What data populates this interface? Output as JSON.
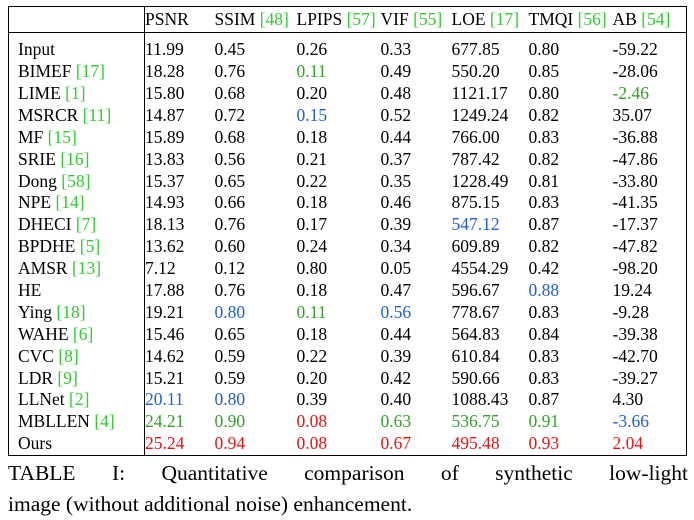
{
  "table": {
    "headers": [
      {
        "label": "",
        "cite": ""
      },
      {
        "label": "PSNR",
        "cite": ""
      },
      {
        "label": "SSIM ",
        "cite": "[48]"
      },
      {
        "label": "LPIPS ",
        "cite": "[57]"
      },
      {
        "label": "VIF ",
        "cite": "[55]"
      },
      {
        "label": "LOE ",
        "cite": "[17]"
      },
      {
        "label": "TMQI ",
        "cite": "[56]"
      },
      {
        "label": "AB ",
        "cite": "[54]"
      }
    ],
    "rows": [
      {
        "method": "Input",
        "cite": "",
        "cells": [
          {
            "v": "11.99",
            "r": ""
          },
          {
            "v": "0.45",
            "r": ""
          },
          {
            "v": "0.26",
            "r": ""
          },
          {
            "v": "0.33",
            "r": ""
          },
          {
            "v": "677.85",
            "r": ""
          },
          {
            "v": "0.80",
            "r": ""
          },
          {
            "v": "-59.22",
            "r": ""
          }
        ]
      },
      {
        "method": "BIMEF ",
        "cite": "[17]",
        "cells": [
          {
            "v": "18.28",
            "r": ""
          },
          {
            "v": "0.76",
            "r": ""
          },
          {
            "v": "0.11",
            "r": "second"
          },
          {
            "v": "0.49",
            "r": ""
          },
          {
            "v": "550.20",
            "r": ""
          },
          {
            "v": "0.85",
            "r": ""
          },
          {
            "v": "-28.06",
            "r": ""
          }
        ]
      },
      {
        "method": "LIME ",
        "cite": "[1]",
        "cells": [
          {
            "v": "15.80",
            "r": ""
          },
          {
            "v": "0.68",
            "r": ""
          },
          {
            "v": "0.20",
            "r": ""
          },
          {
            "v": "0.48",
            "r": ""
          },
          {
            "v": "1121.17",
            "r": ""
          },
          {
            "v": "0.80",
            "r": ""
          },
          {
            "v": "-2.46",
            "r": "second"
          }
        ]
      },
      {
        "method": "MSRCR ",
        "cite": "[11]",
        "cells": [
          {
            "v": "14.87",
            "r": ""
          },
          {
            "v": "0.72",
            "r": ""
          },
          {
            "v": "0.15",
            "r": "third"
          },
          {
            "v": "0.52",
            "r": ""
          },
          {
            "v": "1249.24",
            "r": ""
          },
          {
            "v": "0.82",
            "r": ""
          },
          {
            "v": "35.07",
            "r": ""
          }
        ]
      },
      {
        "method": "MF ",
        "cite": "[15]",
        "cells": [
          {
            "v": "15.89",
            "r": ""
          },
          {
            "v": "0.68",
            "r": ""
          },
          {
            "v": "0.18",
            "r": ""
          },
          {
            "v": "0.44",
            "r": ""
          },
          {
            "v": "766.00",
            "r": ""
          },
          {
            "v": "0.83",
            "r": ""
          },
          {
            "v": "-36.88",
            "r": ""
          }
        ]
      },
      {
        "method": "SRIE ",
        "cite": "[16]",
        "cells": [
          {
            "v": "13.83",
            "r": ""
          },
          {
            "v": "0.56",
            "r": ""
          },
          {
            "v": "0.21",
            "r": ""
          },
          {
            "v": "0.37",
            "r": ""
          },
          {
            "v": "787.42",
            "r": ""
          },
          {
            "v": "0.82",
            "r": ""
          },
          {
            "v": "-47.86",
            "r": ""
          }
        ]
      },
      {
        "method": "Dong ",
        "cite": "[58]",
        "cells": [
          {
            "v": "15.37",
            "r": ""
          },
          {
            "v": "0.65",
            "r": ""
          },
          {
            "v": "0.22",
            "r": ""
          },
          {
            "v": "0.35",
            "r": ""
          },
          {
            "v": "1228.49",
            "r": ""
          },
          {
            "v": "0.81",
            "r": ""
          },
          {
            "v": "-33.80",
            "r": ""
          }
        ]
      },
      {
        "method": "NPE ",
        "cite": "[14]",
        "cells": [
          {
            "v": "14.93",
            "r": ""
          },
          {
            "v": "0.66",
            "r": ""
          },
          {
            "v": "0.18",
            "r": ""
          },
          {
            "v": "0.46",
            "r": ""
          },
          {
            "v": "875.15",
            "r": ""
          },
          {
            "v": "0.83",
            "r": ""
          },
          {
            "v": "-41.35",
            "r": ""
          }
        ]
      },
      {
        "method": "DHECI ",
        "cite": "[7]",
        "cells": [
          {
            "v": "18.13",
            "r": ""
          },
          {
            "v": "0.76",
            "r": ""
          },
          {
            "v": "0.17",
            "r": ""
          },
          {
            "v": "0.39",
            "r": ""
          },
          {
            "v": "547.12",
            "r": "third"
          },
          {
            "v": "0.87",
            "r": ""
          },
          {
            "v": "-17.37",
            "r": ""
          }
        ]
      },
      {
        "method": "BPDHE ",
        "cite": "[5]",
        "cells": [
          {
            "v": "13.62",
            "r": ""
          },
          {
            "v": "0.60",
            "r": ""
          },
          {
            "v": "0.24",
            "r": ""
          },
          {
            "v": "0.34",
            "r": ""
          },
          {
            "v": "609.89",
            "r": ""
          },
          {
            "v": "0.82",
            "r": ""
          },
          {
            "v": "-47.82",
            "r": ""
          }
        ]
      },
      {
        "method": "AMSR ",
        "cite": "[13]",
        "cells": [
          {
            "v": "7.12",
            "r": ""
          },
          {
            "v": "0.12",
            "r": ""
          },
          {
            "v": "0.80",
            "r": ""
          },
          {
            "v": "0.05",
            "r": ""
          },
          {
            "v": "4554.29",
            "r": ""
          },
          {
            "v": "0.42",
            "r": ""
          },
          {
            "v": "-98.20",
            "r": ""
          }
        ]
      },
      {
        "method": "HE",
        "cite": "",
        "cells": [
          {
            "v": "17.88",
            "r": ""
          },
          {
            "v": "0.76",
            "r": ""
          },
          {
            "v": "0.18",
            "r": ""
          },
          {
            "v": "0.47",
            "r": ""
          },
          {
            "v": "596.67",
            "r": ""
          },
          {
            "v": "0.88",
            "r": "third"
          },
          {
            "v": "19.24",
            "r": ""
          }
        ]
      },
      {
        "method": "Ying ",
        "cite": "[18]",
        "cells": [
          {
            "v": "19.21",
            "r": ""
          },
          {
            "v": "0.80",
            "r": "third"
          },
          {
            "v": "0.11",
            "r": "second"
          },
          {
            "v": "0.56",
            "r": "third"
          },
          {
            "v": "778.67",
            "r": ""
          },
          {
            "v": "0.83",
            "r": ""
          },
          {
            "v": "-9.28",
            "r": ""
          }
        ]
      },
      {
        "method": "WAHE ",
        "cite": "[6]",
        "cells": [
          {
            "v": "15.46",
            "r": ""
          },
          {
            "v": "0.65",
            "r": ""
          },
          {
            "v": "0.18",
            "r": ""
          },
          {
            "v": "0.44",
            "r": ""
          },
          {
            "v": "564.83",
            "r": ""
          },
          {
            "v": "0.84",
            "r": ""
          },
          {
            "v": "-39.38",
            "r": ""
          }
        ]
      },
      {
        "method": "CVC ",
        "cite": "[8]",
        "cells": [
          {
            "v": "14.62",
            "r": ""
          },
          {
            "v": "0.59",
            "r": ""
          },
          {
            "v": "0.22",
            "r": ""
          },
          {
            "v": "0.39",
            "r": ""
          },
          {
            "v": "610.84",
            "r": ""
          },
          {
            "v": "0.83",
            "r": ""
          },
          {
            "v": "-42.70",
            "r": ""
          }
        ]
      },
      {
        "method": "LDR ",
        "cite": "[9]",
        "cells": [
          {
            "v": "15.21",
            "r": ""
          },
          {
            "v": "0.59",
            "r": ""
          },
          {
            "v": "0.20",
            "r": ""
          },
          {
            "v": "0.42",
            "r": ""
          },
          {
            "v": "590.66",
            "r": ""
          },
          {
            "v": "0.83",
            "r": ""
          },
          {
            "v": "-39.27",
            "r": ""
          }
        ]
      },
      {
        "method": "LLNet ",
        "cite": "[2]",
        "cells": [
          {
            "v": "20.11",
            "r": "third"
          },
          {
            "v": "0.80",
            "r": "third"
          },
          {
            "v": "0.39",
            "r": ""
          },
          {
            "v": "0.40",
            "r": ""
          },
          {
            "v": "1088.43",
            "r": ""
          },
          {
            "v": "0.87",
            "r": ""
          },
          {
            "v": "4.30",
            "r": ""
          }
        ]
      },
      {
        "method": "MBLLEN ",
        "cite": "[4]",
        "cells": [
          {
            "v": "24.21",
            "r": "second"
          },
          {
            "v": "0.90",
            "r": "second"
          },
          {
            "v": "0.08",
            "r": "best"
          },
          {
            "v": "0.63",
            "r": "second"
          },
          {
            "v": "536.75",
            "r": "second"
          },
          {
            "v": "0.91",
            "r": "second"
          },
          {
            "v": "-3.66",
            "r": "third"
          }
        ]
      },
      {
        "method": "Ours",
        "cite": "",
        "cells": [
          {
            "v": "25.24",
            "r": "best"
          },
          {
            "v": "0.94",
            "r": "best"
          },
          {
            "v": "0.08",
            "r": "best"
          },
          {
            "v": "0.67",
            "r": "best"
          },
          {
            "v": "495.48",
            "r": "best"
          },
          {
            "v": "0.93",
            "r": "best"
          },
          {
            "v": "2.04",
            "r": "best"
          }
        ]
      }
    ]
  },
  "caption": {
    "line1": "TABLE I: Quantitative comparison of synthetic low-light",
    "line2": "image (without additional noise) enhancement."
  },
  "colors": {
    "cite": "#2ecc2e",
    "best": "#ee1111",
    "second": "#33a02c",
    "third": "#1f5fd6"
  }
}
